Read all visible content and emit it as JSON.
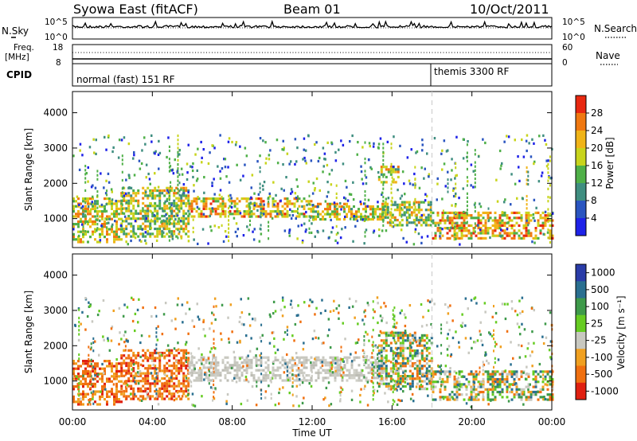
{
  "header": {
    "station": "Syowa East (fitACF)",
    "beam": "Beam 01",
    "date": "10/Oct/2011"
  },
  "noise_panel": {
    "left_label": "N.Sky",
    "right_label": "N.Search",
    "tick_top": "10^5",
    "tick_bottom": "10^0",
    "right_tick_top": "10^5",
    "right_tick_bottom": "10^0"
  },
  "freq_panel": {
    "left_label": "Freq.",
    "left_unit": "[MHz]",
    "right_label": "Nave",
    "left_ticks": [
      "18",
      "8"
    ],
    "right_ticks": [
      "60",
      "0"
    ]
  },
  "cpid_panel": {
    "label": "CPID",
    "modes": [
      {
        "name": "normal (fast) 151 RF",
        "start_hour": 0
      },
      {
        "name": "themis 3300 RF",
        "start_hour": 18
      }
    ]
  },
  "chart_data": [
    {
      "type": "heatmap",
      "title": "",
      "xlabel": "Time UT",
      "ylabel": "Slant Range [km]",
      "x_range_hours": [
        0,
        24
      ],
      "x_ticks": [
        "00:00",
        "04:00",
        "08:00",
        "12:00",
        "16:00",
        "20:00",
        "00:00"
      ],
      "ylim": [
        180,
        4600
      ],
      "y_ticks": [
        1000,
        2000,
        3000,
        4000
      ],
      "colorbar": {
        "label": "Power [dB]",
        "ticks": [
          "4",
          "8",
          "12",
          "16",
          "20",
          "24",
          "28"
        ],
        "range": [
          0,
          31
        ]
      },
      "features": [
        {
          "hours": [
            0.0,
            2.4
          ],
          "range_km": [
            350,
            1600
          ],
          "level": 19
        },
        {
          "hours": [
            2.4,
            5.8
          ],
          "range_km": [
            500,
            1900
          ],
          "level": 17
        },
        {
          "hours": [
            5.8,
            12.0
          ],
          "range_km": [
            1050,
            1600
          ],
          "level": 21
        },
        {
          "hours": [
            12.0,
            15.8
          ],
          "range_km": [
            1000,
            1450
          ],
          "level": 19
        },
        {
          "hours": [
            15.3,
            16.3
          ],
          "range_km": [
            2000,
            2500
          ],
          "level": 18
        },
        {
          "hours": [
            15.5,
            18.0
          ],
          "range_km": [
            800,
            1500
          ],
          "level": 16
        },
        {
          "hours": [
            18.0,
            24.0
          ],
          "range_km": [
            450,
            1200
          ],
          "level": 21
        }
      ]
    },
    {
      "type": "heatmap",
      "title": "",
      "xlabel": "Time UT",
      "ylabel": "Slant Range [km]",
      "x_range_hours": [
        0,
        24
      ],
      "x_ticks": [
        "00:00",
        "04:00",
        "08:00",
        "12:00",
        "16:00",
        "20:00",
        "00:00"
      ],
      "ylim": [
        180,
        4600
      ],
      "y_ticks": [
        1000,
        2000,
        3000,
        4000
      ],
      "colorbar": {
        "label": "Velocity [m s⁻¹]",
        "ticks": [
          "1000",
          "500",
          "100",
          "25",
          "-25",
          "-100",
          "-500",
          "-1000"
        ]
      },
      "features": [
        {
          "hours": [
            0.0,
            2.4
          ],
          "range_km": [
            350,
            1600
          ],
          "class": "negative"
        },
        {
          "hours": [
            2.4,
            5.8
          ],
          "range_km": [
            500,
            1900
          ],
          "class": "negative"
        },
        {
          "hours": [
            5.8,
            15.5
          ],
          "range_km": [
            1000,
            1700
          ],
          "class": "ground"
        },
        {
          "hours": [
            15.3,
            18.0
          ],
          "range_km": [
            800,
            2400
          ],
          "class": "mixed"
        },
        {
          "hours": [
            18.0,
            24.0
          ],
          "range_km": [
            500,
            1300
          ],
          "class": "mixed"
        }
      ]
    }
  ],
  "colors": {
    "power_scale": [
      "#1e22e8",
      "#2a55c0",
      "#3f8e80",
      "#4fb048",
      "#c8d41c",
      "#f0b418",
      "#f07810",
      "#e82810"
    ],
    "velocity_scale": [
      "#2a3ca8",
      "#2a6f90",
      "#3e9a4a",
      "#66cc22",
      "#c8c8c0",
      "#f0a020",
      "#f07010",
      "#e02010"
    ]
  }
}
